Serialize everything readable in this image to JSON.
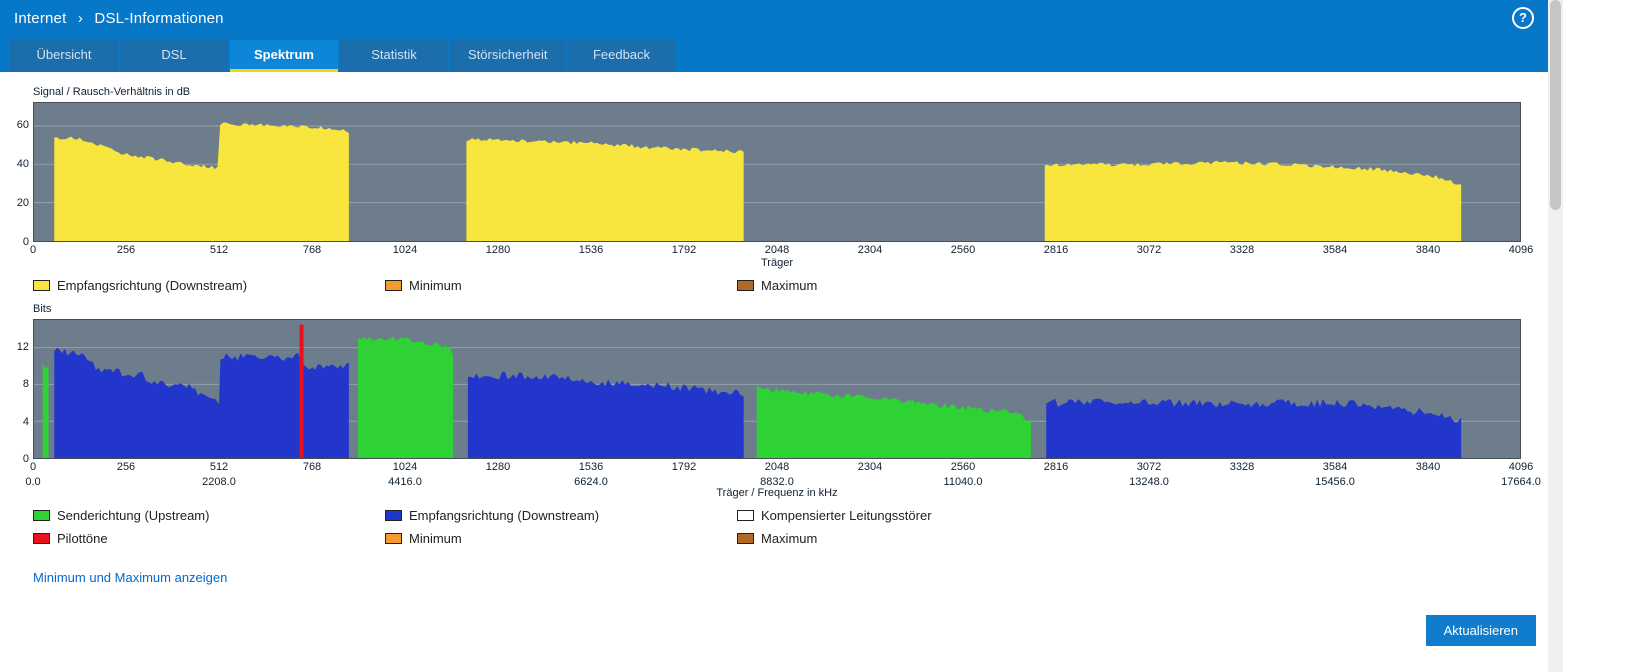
{
  "header": {
    "breadcrumb": {
      "section": "Internet",
      "separator": "›",
      "page": "DSL-Informationen"
    },
    "help_label": "?"
  },
  "tabs": [
    {
      "label": "Übersicht",
      "active": false
    },
    {
      "label": "DSL",
      "active": false
    },
    {
      "label": "Spektrum",
      "active": true
    },
    {
      "label": "Statistik",
      "active": false
    },
    {
      "label": "Störsicherheit",
      "active": false
    },
    {
      "label": "Feedback",
      "active": false
    }
  ],
  "actions": {
    "minmax_link": "Minimum und Maximum anzeigen",
    "refresh_label": "Aktualisieren"
  },
  "colors": {
    "header_blue": "#0777c8",
    "tab_active_underline": "#f5d30c",
    "chart_background": "#6e7d8c",
    "snr_yellow": "#f8e53e",
    "upstream_green": "#2fd235",
    "downstream_blue": "#2236cc",
    "pilot_red": "#e8101c",
    "minimum_orange": "#f39b2d",
    "maximum_brown": "#b16a24"
  },
  "chart_data": [
    {
      "type": "area",
      "title": "Signal / Rausch-Verhältnis in dB",
      "xlabel": "Träger",
      "xlim": [
        0,
        4096
      ],
      "ylim": [
        0,
        72
      ],
      "xticks": [
        0,
        256,
        512,
        768,
        1024,
        1280,
        1536,
        1792,
        2048,
        2304,
        2560,
        2816,
        3072,
        3328,
        3584,
        3840,
        4096
      ],
      "yticks": [
        0,
        20,
        40,
        60
      ],
      "grid": true,
      "legend_position": "bottom",
      "legend": [
        {
          "label": "Empfangsrichtung (Downstream)",
          "color": "#f8e53e"
        },
        {
          "label": "Minimum",
          "color": "#f39b2d"
        },
        {
          "label": "Maximum",
          "color": "#b16a24"
        }
      ],
      "series": [
        {
          "name": "Empfangsrichtung (Downstream)",
          "color": "#f8e53e",
          "jitter": 1.0,
          "bands": [
            [
              [
                56,
                53
              ],
              [
                110,
                54
              ],
              [
                256,
                45
              ],
              [
                430,
                40
              ],
              [
                506,
                38
              ],
              [
                513,
                61
              ],
              [
                690,
                60
              ],
              [
                768,
                59.5
              ],
              [
                868,
                57
              ]
            ],
            [
              [
                1192,
                53
              ],
              [
                1320,
                52.5
              ],
              [
                1536,
                51
              ],
              [
                1720,
                48.5
              ],
              [
                1956,
                46.5
              ]
            ],
            [
              [
                2786,
                40
              ],
              [
                3090,
                40
              ],
              [
                3260,
                41
              ],
              [
                3450,
                40
              ],
              [
                3700,
                37.5
              ],
              [
                3840,
                34.5
              ],
              [
                3905,
                31.5
              ],
              [
                3934,
                29
              ]
            ]
          ]
        }
      ]
    },
    {
      "type": "area",
      "title": "Bits",
      "xlabel": "Träger / Frequenz in kHz",
      "xlim": [
        0,
        4096
      ],
      "ylim": [
        0,
        15
      ],
      "xticks": [
        0,
        256,
        512,
        768,
        1024,
        1280,
        1536,
        1792,
        2048,
        2304,
        2560,
        2816,
        3072,
        3328,
        3584,
        3840,
        4096
      ],
      "xticks_freq": [
        [
          0,
          "0.0"
        ],
        [
          512,
          "2208.0"
        ],
        [
          1024,
          "4416.0"
        ],
        [
          1536,
          "6624.0"
        ],
        [
          2048,
          "8832.0"
        ],
        [
          2560,
          "11040.0"
        ],
        [
          3072,
          "13248.0"
        ],
        [
          3584,
          "15456.0"
        ],
        [
          4096,
          "17664.0"
        ]
      ],
      "yticks": [
        0,
        4,
        8,
        12
      ],
      "grid": true,
      "legend_position": "bottom",
      "legend": [
        {
          "label": "Senderichtung (Upstream)",
          "color": "#2fd235"
        },
        {
          "label": "Empfangsrichtung (Downstream)",
          "color": "#2236cc"
        },
        {
          "label": "Kompensierter Leitungsstörer",
          "color": "#ffffff"
        },
        {
          "label": "Pilottöne",
          "color": "#e8101c"
        },
        {
          "label": "Minimum",
          "color": "#f39b2d"
        },
        {
          "label": "Maximum",
          "color": "#b16a24"
        }
      ],
      "series": [
        {
          "name": "Senderichtung (Upstream)",
          "color": "#2fd235",
          "jitter": 0.3,
          "bands": [
            [
              [
                24,
                10
              ],
              [
                40,
                10
              ]
            ],
            [
              [
                893,
                13
              ],
              [
                1005,
                13
              ],
              [
                1080,
                12.6
              ],
              [
                1148,
                12
              ],
              [
                1155,
                11
              ]
            ],
            [
              [
                1992,
                8
              ],
              [
                2015,
                7.5
              ],
              [
                2150,
                7
              ],
              [
                2310,
                6.5
              ],
              [
                2430,
                6
              ],
              [
                2560,
                5.5
              ],
              [
                2680,
                5
              ],
              [
                2715,
                4.6
              ],
              [
                2748,
                4.2
              ]
            ]
          ]
        },
        {
          "name": "Empfangsrichtung (Downstream)",
          "color": "#2236cc",
          "jitter": 0.45,
          "bands": [
            [
              [
                56,
                11.8
              ],
              [
                92,
                11.5
              ],
              [
                132,
                11
              ],
              [
                178,
                9.6
              ],
              [
                300,
                9
              ],
              [
                332,
                8.2
              ],
              [
                420,
                8
              ],
              [
                452,
                7.1
              ],
              [
                500,
                6.3
              ],
              [
                510,
                6.2
              ],
              [
                514,
                11
              ],
              [
                728,
                11
              ],
              [
                744,
                10
              ],
              [
                868,
                10
              ]
            ],
            [
              [
                1196,
                9
              ],
              [
                1400,
                8.9
              ],
              [
                1520,
                8.4
              ],
              [
                1700,
                8
              ],
              [
                1822,
                7.5
              ],
              [
                1956,
                7
              ]
            ],
            [
              [
                2790,
                6
              ],
              [
                3000,
                6.1
              ],
              [
                3300,
                5.9
              ],
              [
                3600,
                6
              ],
              [
                3762,
                5.4
              ],
              [
                3850,
                4.8
              ],
              [
                3934,
                4.1
              ]
            ]
          ]
        },
        {
          "name": "Pilottöne",
          "color": "#e8101c",
          "jitter": 0,
          "bands": [
            [
              [
                732,
                14.5
              ],
              [
                743,
                14.5
              ]
            ]
          ]
        }
      ]
    }
  ]
}
